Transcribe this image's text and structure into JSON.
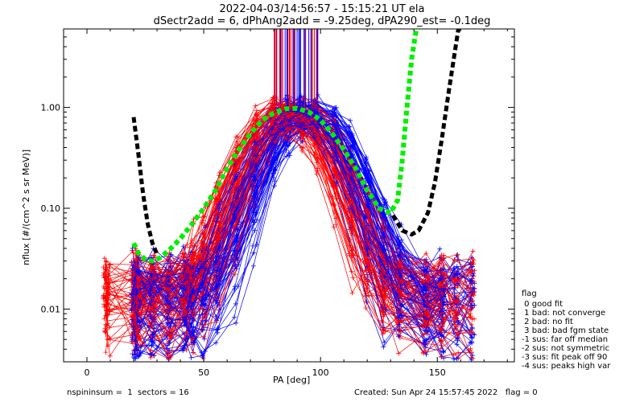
{
  "chart_data": {
    "type": "line",
    "title": "2022-04-03/14:56:57 - 15:15:21 UT ela",
    "subtitle": "dSectr2add = 6, dPhAng2add = -9.25deg, dPA290_est=  -0.1deg",
    "xlabel": "PA [deg]",
    "ylabel": "nflux [#/(cm^2 s sr MeV)]",
    "xlim": [
      -10,
      183
    ],
    "ylim": [
      0.003,
      6.0
    ],
    "yscale": "log",
    "x_ticks": [
      0,
      50,
      100,
      150
    ],
    "x_tick_labels": [
      "0",
      "50",
      "100",
      "150"
    ],
    "y_ticks": [
      0.01,
      0.1,
      1.0
    ],
    "y_tick_labels": [
      "0.01",
      "0.10",
      "1.00"
    ],
    "fits": [
      {
        "color": "#00ee00",
        "x": [
          20,
          22,
          25,
          28,
          31,
          35,
          40,
          45,
          50,
          55,
          60,
          65,
          70,
          75,
          80,
          85,
          90,
          95,
          100,
          105,
          110,
          115,
          120,
          125,
          130,
          133,
          135,
          137,
          139,
          141
        ],
        "y": [
          0.045,
          0.036,
          0.031,
          0.03,
          0.032,
          0.038,
          0.05,
          0.07,
          0.1,
          0.15,
          0.25,
          0.38,
          0.55,
          0.75,
          0.88,
          0.97,
          0.98,
          0.9,
          0.75,
          0.55,
          0.38,
          0.25,
          0.15,
          0.1,
          0.09,
          0.12,
          0.3,
          1.0,
          3.0,
          6.0
        ]
      },
      {
        "color": "#000000",
        "x": [
          20,
          22,
          24,
          26,
          28,
          30,
          131,
          135,
          139,
          142,
          146,
          149,
          152,
          155,
          157,
          159
        ],
        "y": [
          0.8,
          0.35,
          0.14,
          0.07,
          0.045,
          0.035,
          0.085,
          0.06,
          0.055,
          0.06,
          0.09,
          0.18,
          0.5,
          1.5,
          3.0,
          6.0
        ]
      }
    ],
    "legend_title": "flag",
    "legend": [
      " 0 good fit",
      " 1 bad: not converge",
      " 2 bad: no fit",
      " 3 bad: bad fgm state",
      "-1 sus: far off median",
      "-2 sus: not symmetric",
      "-3 sus: fit peak off 90",
      "-4 sus: peaks high var"
    ],
    "series_colors": {
      "red": "#ff0000",
      "blue": "#0000ff"
    },
    "grid": false
  },
  "footer": {
    "left": "nspininsum =  1  sectors = 16",
    "right": "Created: Sun Apr 24 15:57:45 2022   flag = 0"
  }
}
